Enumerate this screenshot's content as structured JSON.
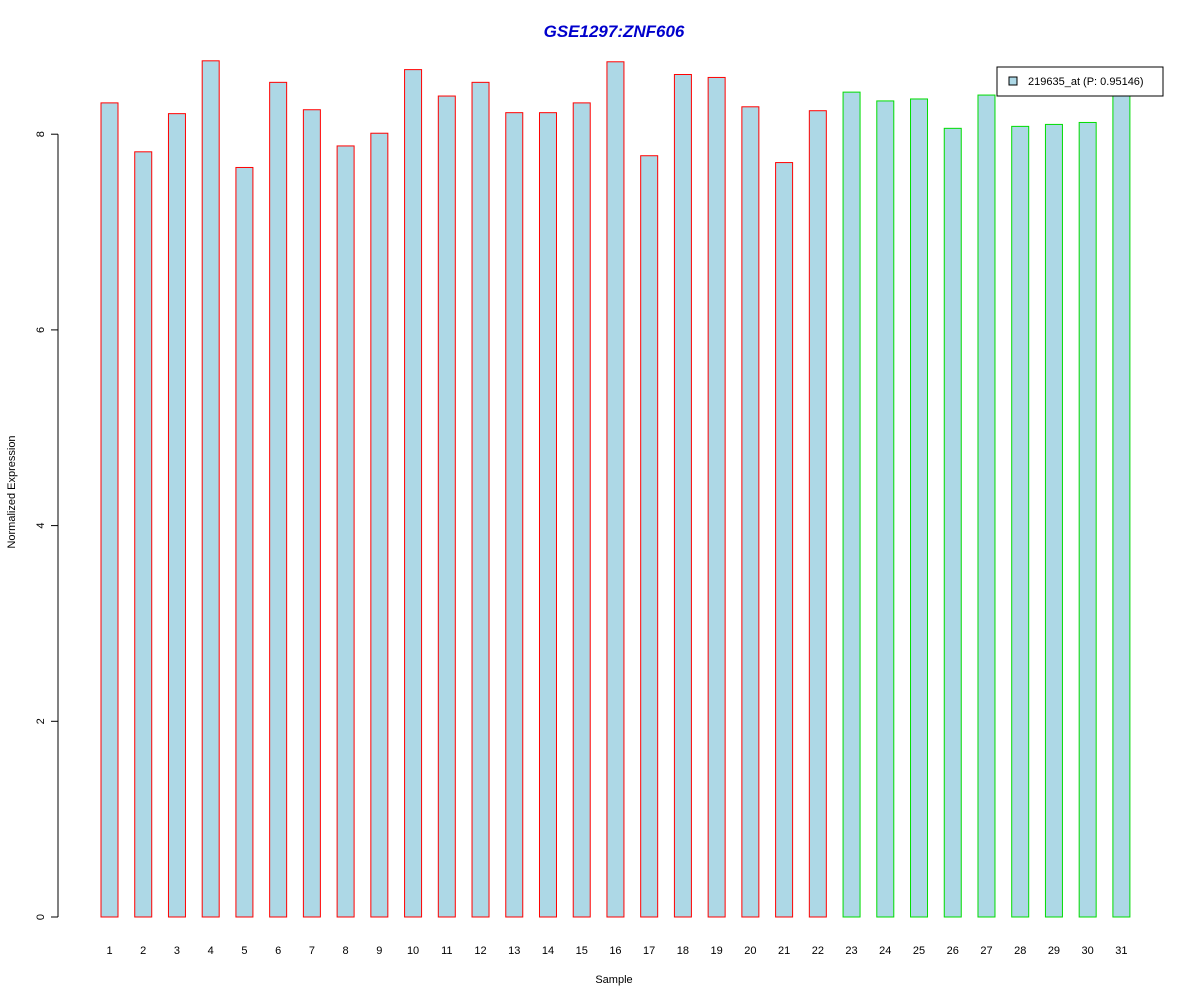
{
  "chart_data": {
    "type": "bar",
    "title": "GSE1297:ZNF606",
    "xlabel": "Sample",
    "ylabel": "Normalized Expression",
    "ylim": [
      0,
      8.9
    ],
    "yticks": [
      0,
      2,
      4,
      6,
      8
    ],
    "grid": false,
    "legend_placement": "top-right",
    "categories": [
      "1",
      "2",
      "3",
      "4",
      "5",
      "6",
      "7",
      "8",
      "9",
      "10",
      "11",
      "12",
      "13",
      "14",
      "15",
      "16",
      "17",
      "18",
      "19",
      "20",
      "21",
      "22",
      "23",
      "24",
      "25",
      "26",
      "27",
      "28",
      "29",
      "30",
      "31"
    ],
    "values": [
      8.32,
      7.82,
      8.21,
      8.75,
      7.66,
      8.53,
      8.25,
      7.88,
      8.01,
      8.66,
      8.39,
      8.53,
      8.22,
      8.22,
      8.32,
      8.74,
      7.78,
      8.61,
      8.58,
      8.28,
      7.71,
      8.24,
      8.43,
      8.34,
      8.36,
      8.06,
      8.4,
      8.08,
      8.1,
      8.12,
      8.41
    ],
    "groups": [
      "red",
      "red",
      "red",
      "red",
      "red",
      "red",
      "red",
      "red",
      "red",
      "red",
      "red",
      "red",
      "red",
      "red",
      "red",
      "red",
      "red",
      "red",
      "red",
      "red",
      "red",
      "red",
      "green",
      "green",
      "green",
      "green",
      "green",
      "green",
      "green",
      "green",
      "green"
    ],
    "legend": {
      "label": "219635_at (P: 0.95146)"
    },
    "colors": {
      "title": "#0000cc",
      "bar_fill": "#add8e6",
      "group_red": "#ff0000",
      "group_green": "#00dd00",
      "axis": "#000000"
    }
  }
}
